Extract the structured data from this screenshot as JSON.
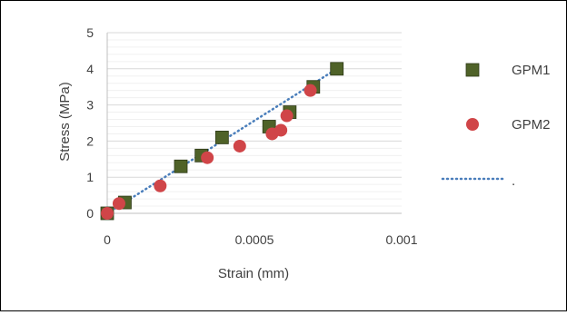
{
  "chart_data": {
    "type": "scatter",
    "title": "",
    "xlabel": "Strain (mm)",
    "ylabel": "Stress (MPa)",
    "xlim": [
      0,
      0.001
    ],
    "ylim": [
      0,
      5
    ],
    "x_ticks": [
      "0",
      "0.0005",
      "0.001"
    ],
    "y_ticks": [
      "0",
      "1",
      "2",
      "3",
      "4",
      "5"
    ],
    "grid": "horizontal major and minor",
    "legend_position": "right",
    "series": [
      {
        "name": "GPM1",
        "marker": "square",
        "color": "#4f6228",
        "x": [
          0,
          6e-05,
          0.00025,
          0.00032,
          0.00039,
          0.00055,
          0.00062,
          0.0007,
          0.00078
        ],
        "y": [
          0,
          0.3,
          1.3,
          1.6,
          2.1,
          2.4,
          2.8,
          3.5,
          4.0
        ]
      },
      {
        "name": "GPM2",
        "marker": "circle",
        "color": "#d04548",
        "x": [
          0,
          4e-05,
          0.00018,
          0.00034,
          0.00045,
          0.00056,
          0.00059,
          0.00061,
          0.00069
        ],
        "y": [
          0,
          0.27,
          0.76,
          1.54,
          1.86,
          2.2,
          2.3,
          2.7,
          3.4
        ]
      }
    ],
    "trendline": {
      "name": ".",
      "style": "dotted",
      "color": "#4a7ebb",
      "x": [
        0,
        0.00078
      ],
      "y": [
        0,
        4.0
      ]
    }
  }
}
